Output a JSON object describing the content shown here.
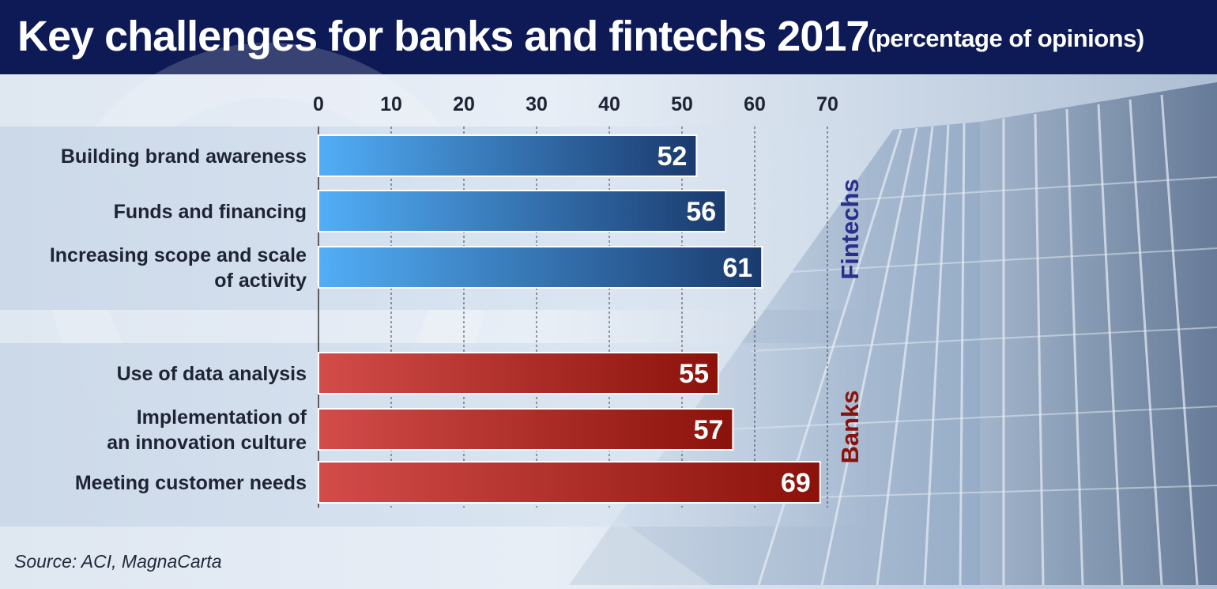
{
  "header": {
    "title": "Key challenges for banks and fintechs 2017",
    "subtitle": "(percentage of opinions)"
  },
  "source": "Source: ACI, MagnaCarta",
  "colors": {
    "header_bg": "#0d1a55",
    "fintechs_bar_start": "#52aef7",
    "fintechs_bar_end": "#1a3a6d",
    "banks_bar_start": "#d24c4a",
    "banks_bar_end": "#8b120b",
    "fintechs_label": "#2b2e8c",
    "banks_label": "#8b120b"
  },
  "chart_data": {
    "type": "bar",
    "orientation": "horizontal",
    "xlim": [
      0,
      70
    ],
    "xticks": [
      0,
      10,
      20,
      30,
      40,
      50,
      60,
      70
    ],
    "grid": true,
    "groups": [
      {
        "name": "Fintechs",
        "categories": [
          [
            "Building brand awareness"
          ],
          [
            "Funds and financing"
          ],
          [
            "Increasing scope and scale",
            "of activity"
          ]
        ],
        "values": [
          52,
          56,
          61
        ]
      },
      {
        "name": "Banks",
        "categories": [
          [
            "Use of data analysis"
          ],
          [
            "Implementation of",
            "an innovation culture"
          ],
          [
            "Meeting customer needs"
          ]
        ],
        "values": [
          55,
          57,
          69
        ]
      }
    ]
  }
}
